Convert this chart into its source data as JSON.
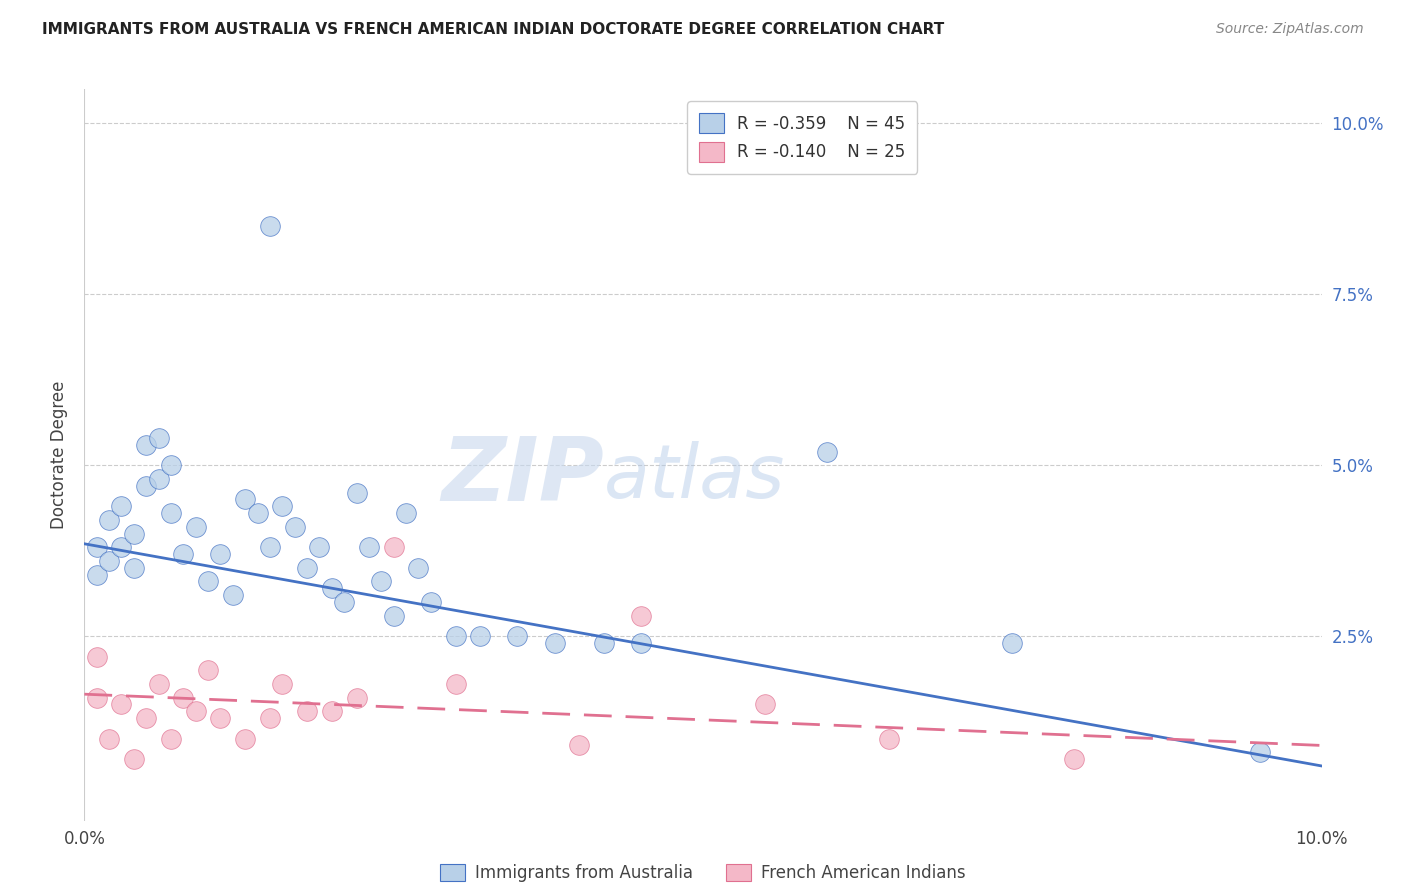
{
  "title": "IMMIGRANTS FROM AUSTRALIA VS FRENCH AMERICAN INDIAN DOCTORATE DEGREE CORRELATION CHART",
  "source": "Source: ZipAtlas.com",
  "ylabel": "Doctorate Degree",
  "right_yticks": [
    "10.0%",
    "7.5%",
    "5.0%",
    "2.5%"
  ],
  "right_ytick_vals": [
    0.1,
    0.075,
    0.05,
    0.025
  ],
  "legend_blue_r": "R = -0.359",
  "legend_blue_n": "N = 45",
  "legend_pink_r": "R = -0.140",
  "legend_pink_n": "N = 25",
  "blue_color": "#b8d0e8",
  "pink_color": "#f4b8c8",
  "line_blue": "#4472c4",
  "line_pink": "#e07090",
  "watermark_zip": "ZIP",
  "watermark_atlas": "atlas",
  "blue_scatter_x": [
    0.001,
    0.001,
    0.002,
    0.002,
    0.003,
    0.003,
    0.004,
    0.004,
    0.005,
    0.005,
    0.006,
    0.006,
    0.007,
    0.007,
    0.008,
    0.009,
    0.01,
    0.011,
    0.012,
    0.013,
    0.014,
    0.015,
    0.015,
    0.016,
    0.017,
    0.018,
    0.019,
    0.02,
    0.021,
    0.022,
    0.023,
    0.024,
    0.025,
    0.026,
    0.027,
    0.028,
    0.03,
    0.032,
    0.035,
    0.038,
    0.042,
    0.045,
    0.06,
    0.075,
    0.095
  ],
  "blue_scatter_y": [
    0.038,
    0.034,
    0.042,
    0.036,
    0.044,
    0.038,
    0.04,
    0.035,
    0.053,
    0.047,
    0.054,
    0.048,
    0.05,
    0.043,
    0.037,
    0.041,
    0.033,
    0.037,
    0.031,
    0.045,
    0.043,
    0.085,
    0.038,
    0.044,
    0.041,
    0.035,
    0.038,
    0.032,
    0.03,
    0.046,
    0.038,
    0.033,
    0.028,
    0.043,
    0.035,
    0.03,
    0.025,
    0.025,
    0.025,
    0.024,
    0.024,
    0.024,
    0.052,
    0.024,
    0.008
  ],
  "pink_scatter_x": [
    0.001,
    0.001,
    0.002,
    0.003,
    0.004,
    0.005,
    0.006,
    0.007,
    0.008,
    0.009,
    0.01,
    0.011,
    0.013,
    0.015,
    0.016,
    0.018,
    0.02,
    0.022,
    0.025,
    0.03,
    0.04,
    0.045,
    0.055,
    0.065,
    0.08
  ],
  "pink_scatter_y": [
    0.022,
    0.016,
    0.01,
    0.015,
    0.007,
    0.013,
    0.018,
    0.01,
    0.016,
    0.014,
    0.02,
    0.013,
    0.01,
    0.013,
    0.018,
    0.014,
    0.014,
    0.016,
    0.038,
    0.018,
    0.009,
    0.028,
    0.015,
    0.01,
    0.007
  ],
  "xlim": [
    0,
    0.1
  ],
  "ylim": [
    -0.002,
    0.105
  ],
  "blue_line_x0": 0.0,
  "blue_line_x1": 0.1,
  "blue_line_y0": 0.0385,
  "blue_line_y1": 0.006,
  "pink_line_x0": 0.0,
  "pink_line_x1": 0.1,
  "pink_line_y0": 0.0165,
  "pink_line_y1": 0.009,
  "grid_yticks": [
    0.025,
    0.05,
    0.075,
    0.1
  ],
  "title_fontsize": 11,
  "source_fontsize": 10,
  "tick_fontsize": 12,
  "legend_fontsize": 12
}
